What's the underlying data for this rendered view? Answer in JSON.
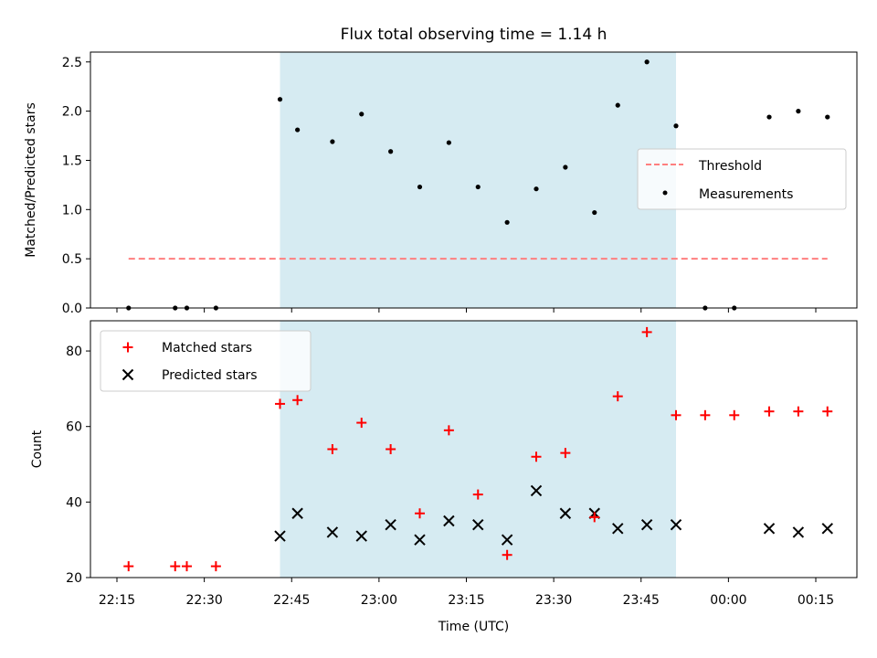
{
  "chart_data": [
    {
      "type": "scatter",
      "title": "Flux total observing time = 1.14 h",
      "xlabel": "",
      "ylabel": "Matched/Predicted stars",
      "ylim": [
        0,
        2.6
      ],
      "yticks": [
        "0.0",
        "0.5",
        "1.0",
        "1.5",
        "2.0",
        "2.5"
      ],
      "ytick_values": [
        0,
        0.5,
        1.0,
        1.5,
        2.0,
        2.5
      ],
      "legend_position": "center-right",
      "shaded_interval": [
        "22:43",
        "23:51"
      ],
      "threshold": {
        "name": "Threshold",
        "value": 0.5,
        "x_range": [
          "22:17",
          "00:17"
        ],
        "color": "#ff7f7f"
      },
      "series": [
        {
          "name": "Measurements",
          "color": "#000000",
          "points": [
            [
              "22:17",
              0.0
            ],
            [
              "22:25",
              0.0
            ],
            [
              "22:27",
              0.0
            ],
            [
              "22:32",
              0.0
            ],
            [
              "22:43",
              2.12
            ],
            [
              "22:46",
              1.81
            ],
            [
              "22:52",
              1.69
            ],
            [
              "22:57",
              1.97
            ],
            [
              "23:02",
              1.59
            ],
            [
              "23:07",
              1.23
            ],
            [
              "23:12",
              1.68
            ],
            [
              "23:17",
              1.23
            ],
            [
              "23:22",
              0.87
            ],
            [
              "23:27",
              1.21
            ],
            [
              "23:32",
              1.43
            ],
            [
              "23:37",
              0.97
            ],
            [
              "23:41",
              2.06
            ],
            [
              "23:46",
              2.5
            ],
            [
              "23:51",
              1.85
            ],
            [
              "23:56",
              0.0
            ],
            [
              "00:01",
              0.0
            ],
            [
              "00:07",
              1.94
            ],
            [
              "00:12",
              2.0
            ],
            [
              "00:17",
              1.94
            ]
          ]
        }
      ]
    },
    {
      "type": "scatter",
      "title": "",
      "xlabel": "Time (UTC)",
      "ylabel": "Count",
      "ylim": [
        20,
        88
      ],
      "yticks": [
        "20",
        "40",
        "60",
        "80"
      ],
      "ytick_values": [
        20,
        40,
        60,
        80
      ],
      "legend_position": "upper-left",
      "shaded_interval": [
        "22:43",
        "23:51"
      ],
      "series": [
        {
          "name": "Matched stars",
          "color": "#ff0000",
          "marker": "+",
          "points": [
            [
              "22:17",
              23
            ],
            [
              "22:25",
              23
            ],
            [
              "22:27",
              23
            ],
            [
              "22:32",
              23
            ],
            [
              "22:43",
              66
            ],
            [
              "22:46",
              67
            ],
            [
              "22:52",
              54
            ],
            [
              "22:57",
              61
            ],
            [
              "23:02",
              54
            ],
            [
              "23:07",
              37
            ],
            [
              "23:12",
              59
            ],
            [
              "23:17",
              42
            ],
            [
              "23:22",
              26
            ],
            [
              "23:27",
              52
            ],
            [
              "23:32",
              53
            ],
            [
              "23:37",
              36
            ],
            [
              "23:41",
              68
            ],
            [
              "23:46",
              85
            ],
            [
              "23:51",
              63
            ],
            [
              "23:56",
              63
            ],
            [
              "00:01",
              63
            ],
            [
              "00:07",
              64
            ],
            [
              "00:12",
              64
            ],
            [
              "00:17",
              64
            ]
          ]
        },
        {
          "name": "Predicted stars",
          "color": "#000000",
          "marker": "x",
          "points": [
            [
              "22:43",
              31
            ],
            [
              "22:46",
              37
            ],
            [
              "22:52",
              32
            ],
            [
              "22:57",
              31
            ],
            [
              "23:02",
              34
            ],
            [
              "23:07",
              30
            ],
            [
              "23:12",
              35
            ],
            [
              "23:17",
              34
            ],
            [
              "23:22",
              30
            ],
            [
              "23:27",
              43
            ],
            [
              "23:32",
              37
            ],
            [
              "23:37",
              37
            ],
            [
              "23:41",
              33
            ],
            [
              "23:46",
              34
            ],
            [
              "23:51",
              34
            ],
            [
              "00:07",
              33
            ],
            [
              "00:12",
              32
            ],
            [
              "00:17",
              33
            ]
          ]
        }
      ],
      "xticks": [
        "22:15",
        "22:30",
        "22:45",
        "23:00",
        "23:15",
        "23:30",
        "23:45",
        "00:00",
        "00:15"
      ]
    }
  ]
}
